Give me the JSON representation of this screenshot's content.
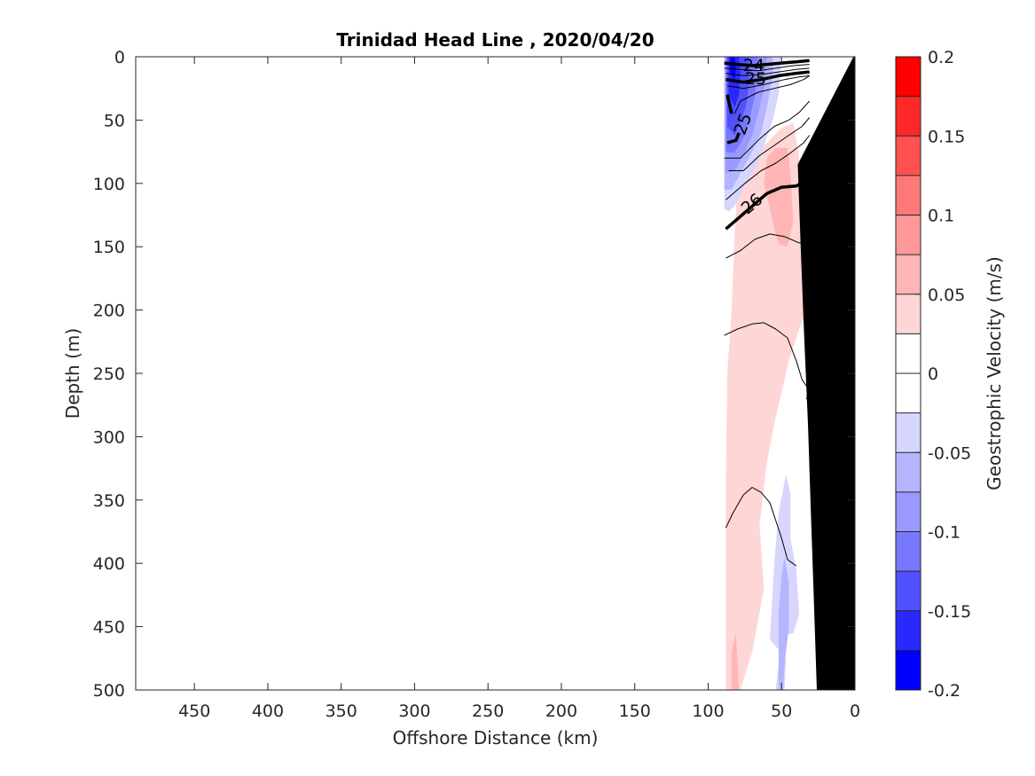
{
  "chart_data": {
    "type": "heatmap",
    "title": "Trinidad Head Line , 2020/04/20",
    "xlabel": "Offshore Distance (km)",
    "ylabel": "Depth (m)",
    "xlim": [
      490,
      0
    ],
    "ylim": [
      0,
      500
    ],
    "x_ticks": [
      "450",
      "400",
      "350",
      "300",
      "250",
      "200",
      "150",
      "100",
      "50",
      "0"
    ],
    "y_ticks": [
      "0",
      "50",
      "100",
      "150",
      "200",
      "250",
      "300",
      "350",
      "400",
      "450",
      "500"
    ],
    "colorbar": {
      "label": "Geostrophic Velocity (m/s)",
      "range": [
        -0.2,
        0.2
      ],
      "tick_labels": [
        "0.2",
        "0.15",
        "0.1",
        "0.05",
        "0",
        "-0.05",
        "-0.1",
        "-0.15",
        "-0.2"
      ],
      "levels": [
        {
          "min": -0.2,
          "max": -0.175,
          "color": "#0000ff"
        },
        {
          "min": -0.175,
          "max": -0.15,
          "color": "#2828ff"
        },
        {
          "min": -0.15,
          "max": -0.125,
          "color": "#5050ff"
        },
        {
          "min": -0.125,
          "max": -0.1,
          "color": "#7878ff"
        },
        {
          "min": -0.1,
          "max": -0.075,
          "color": "#9999ff"
        },
        {
          "min": -0.075,
          "max": -0.05,
          "color": "#b5b5ff"
        },
        {
          "min": -0.05,
          "max": -0.025,
          "color": "#d6d6ff"
        },
        {
          "min": -0.025,
          "max": 0,
          "color": "#ffffff"
        },
        {
          "min": 0,
          "max": 0.025,
          "color": "#ffffff"
        },
        {
          "min": 0.025,
          "max": 0.05,
          "color": "#ffd6d6"
        },
        {
          "min": 0.05,
          "max": 0.075,
          "color": "#ffb5b5"
        },
        {
          "min": 0.075,
          "max": 0.1,
          "color": "#ff9999"
        },
        {
          "min": 0.1,
          "max": 0.125,
          "color": "#ff7878"
        },
        {
          "min": 0.125,
          "max": 0.15,
          "color": "#ff5050"
        },
        {
          "min": 0.15,
          "max": 0.175,
          "color": "#ff2828"
        },
        {
          "min": 0.175,
          "max": 0.2,
          "color": "#ff0000"
        }
      ]
    },
    "velocity_regions": [
      {
        "value": 0.035,
        "color": "#ffd6d6",
        "points": [
          [
            88,
            500
          ],
          [
            88,
            340
          ],
          [
            87,
            250
          ],
          [
            84,
            200
          ],
          [
            82,
            140
          ],
          [
            80,
            100
          ],
          [
            72,
            82
          ],
          [
            60,
            68
          ],
          [
            50,
            56
          ],
          [
            42,
            52
          ],
          [
            38,
            80
          ],
          [
            36,
            130
          ],
          [
            33,
            160
          ],
          [
            32,
            200
          ],
          [
            38,
            215
          ],
          [
            45,
            240
          ],
          [
            55,
            290
          ],
          [
            60,
            320
          ],
          [
            65,
            370
          ],
          [
            62,
            420
          ],
          [
            70,
            470
          ],
          [
            78,
            500
          ]
        ]
      },
      {
        "value": 0.06,
        "color": "#ffb5b5",
        "points": [
          [
            62,
            100
          ],
          [
            60,
            80
          ],
          [
            54,
            72
          ],
          [
            46,
            72
          ],
          [
            44,
            92
          ],
          [
            42,
            130
          ],
          [
            46,
            150
          ],
          [
            52,
            148
          ],
          [
            56,
            130
          ]
        ]
      },
      {
        "value": 0.06,
        "color": "#ffb5b5",
        "points": [
          [
            84,
            500
          ],
          [
            84,
            470
          ],
          [
            81,
            455
          ],
          [
            79,
            500
          ]
        ]
      },
      {
        "value": -0.035,
        "color": "#d6d6ff",
        "points": [
          [
            58,
            460
          ],
          [
            55,
            400
          ],
          [
            52,
            360
          ],
          [
            47,
            330
          ],
          [
            44,
            345
          ],
          [
            44,
            380
          ],
          [
            40,
            405
          ],
          [
            38,
            440
          ],
          [
            42,
            455
          ],
          [
            50,
            458
          ],
          [
            54,
            500
          ],
          [
            48,
            500
          ],
          [
            47,
            475
          ]
        ]
      },
      {
        "value": -0.06,
        "color": "#b5b5ff",
        "points": [
          [
            52,
            500
          ],
          [
            52,
            440
          ],
          [
            50,
            410
          ],
          [
            48,
            395
          ],
          [
            45,
            415
          ],
          [
            45,
            450
          ],
          [
            48,
            480
          ],
          [
            49,
            500
          ]
        ]
      },
      {
        "value": -0.04,
        "color": "#d6d6ff",
        "points": [
          [
            89,
            0
          ],
          [
            89,
            120
          ],
          [
            86,
            122
          ],
          [
            82,
            118
          ],
          [
            74,
            100
          ],
          [
            68,
            88
          ],
          [
            62,
            70
          ],
          [
            56,
            50
          ],
          [
            52,
            30
          ],
          [
            50,
            0
          ]
        ]
      },
      {
        "value": -0.06,
        "color": "#b5b5ff",
        "points": [
          [
            89,
            0
          ],
          [
            89,
            105
          ],
          [
            84,
            105
          ],
          [
            78,
            92
          ],
          [
            70,
            75
          ],
          [
            64,
            60
          ],
          [
            60,
            40
          ],
          [
            56,
            15
          ],
          [
            56,
            0
          ]
        ]
      },
      {
        "value": -0.085,
        "color": "#9999ff",
        "points": [
          [
            88,
            0
          ],
          [
            88,
            92
          ],
          [
            82,
            90
          ],
          [
            76,
            78
          ],
          [
            70,
            62
          ],
          [
            66,
            45
          ],
          [
            62,
            25
          ],
          [
            60,
            0
          ]
        ]
      },
      {
        "value": -0.11,
        "color": "#7878ff",
        "points": [
          [
            88,
            0
          ],
          [
            88,
            75
          ],
          [
            82,
            76
          ],
          [
            76,
            64
          ],
          [
            72,
            50
          ],
          [
            68,
            30
          ],
          [
            66,
            0
          ]
        ]
      },
      {
        "value": -0.135,
        "color": "#5050ff",
        "points": [
          [
            87,
            0
          ],
          [
            87,
            55
          ],
          [
            82,
            62
          ],
          [
            78,
            52
          ],
          [
            74,
            38
          ],
          [
            72,
            20
          ],
          [
            72,
            0
          ]
        ]
      },
      {
        "value": -0.16,
        "color": "#2828ff",
        "points": [
          [
            86,
            0
          ],
          [
            86,
            30
          ],
          [
            82,
            40
          ],
          [
            79,
            30
          ],
          [
            78,
            12
          ],
          [
            79,
            0
          ]
        ]
      },
      {
        "value": -0.185,
        "color": "#0000ff",
        "points": [
          [
            85,
            0
          ],
          [
            85,
            12
          ],
          [
            82,
            18
          ],
          [
            81,
            8
          ],
          [
            82,
            0
          ]
        ]
      }
    ],
    "bathymetry": {
      "color": "#000000",
      "points": [
        [
          0,
          0
        ],
        [
          0,
          500
        ],
        [
          26,
          500
        ],
        [
          28,
          430
        ],
        [
          30,
          360
        ],
        [
          32,
          290
        ],
        [
          35,
          210
        ],
        [
          37,
          150
        ],
        [
          39,
          85
        ],
        [
          1,
          0
        ]
      ]
    },
    "density_contours": [
      {
        "label": "24",
        "bold": true,
        "points": [
          [
            89,
            5
          ],
          [
            80,
            6
          ],
          [
            70,
            7
          ],
          [
            60,
            6
          ],
          [
            50,
            5
          ],
          [
            40,
            4
          ],
          [
            31,
            3
          ]
        ]
      },
      {
        "bold": false,
        "points": [
          [
            89,
            9
          ],
          [
            78,
            10
          ],
          [
            66,
            11
          ],
          [
            54,
            9
          ],
          [
            42,
            7
          ],
          [
            31,
            6
          ]
        ]
      },
      {
        "bold": false,
        "points": [
          [
            88,
            13
          ],
          [
            76,
            15
          ],
          [
            64,
            14
          ],
          [
            52,
            12
          ],
          [
            40,
            10
          ],
          [
            31,
            9
          ]
        ]
      },
      {
        "label": "25",
        "bold": true,
        "points": [
          [
            88,
            18
          ],
          [
            76,
            20
          ],
          [
            64,
            18
          ],
          [
            52,
            15
          ],
          [
            40,
            13
          ],
          [
            31,
            12
          ]
        ]
      },
      {
        "bold": false,
        "points": [
          [
            87,
            23
          ],
          [
            76,
            25
          ],
          [
            62,
            22
          ],
          [
            48,
            18
          ],
          [
            38,
            16
          ],
          [
            31,
            15
          ]
        ]
      },
      {
        "bold": false,
        "points": [
          [
            82,
            45
          ],
          [
            78,
            35
          ],
          [
            66,
            28
          ],
          [
            55,
            25
          ],
          [
            44,
            22
          ],
          [
            35,
            18
          ],
          [
            31,
            15
          ]
        ]
      },
      {
        "bold": true,
        "points": [
          [
            87,
            30
          ],
          [
            84,
            45
          ]
        ]
      },
      {
        "bold": true,
        "points": [
          [
            87,
            68
          ],
          [
            81,
            66
          ],
          [
            79,
            60
          ]
        ]
      },
      {
        "bold": false,
        "points": [
          [
            89,
            80
          ],
          [
            78,
            80
          ],
          [
            65,
            65
          ],
          [
            55,
            55
          ],
          [
            45,
            50
          ],
          [
            38,
            44
          ],
          [
            31,
            35
          ]
        ]
      },
      {
        "bold": false,
        "points": [
          [
            86,
            90
          ],
          [
            76,
            90
          ],
          [
            65,
            78
          ],
          [
            55,
            70
          ],
          [
            45,
            62
          ],
          [
            36,
            55
          ],
          [
            31,
            48
          ]
        ]
      },
      {
        "bold": false,
        "points": [
          [
            88,
            113
          ],
          [
            75,
            100
          ],
          [
            64,
            90
          ],
          [
            54,
            84
          ],
          [
            44,
            76
          ],
          [
            35,
            68
          ],
          [
            31,
            62
          ]
        ]
      },
      {
        "label": "26",
        "bold": true,
        "points": [
          [
            88,
            136
          ],
          [
            80,
            128
          ],
          [
            70,
            118
          ],
          [
            60,
            108
          ],
          [
            50,
            103
          ],
          [
            40,
            102
          ],
          [
            30,
            96
          ]
        ]
      },
      {
        "bold": false,
        "points": [
          [
            88,
            159
          ],
          [
            78,
            153
          ],
          [
            68,
            144
          ],
          [
            58,
            140
          ],
          [
            48,
            142
          ],
          [
            38,
            147
          ],
          [
            31,
            146
          ]
        ]
      },
      {
        "bold": false,
        "points": [
          [
            89,
            220
          ],
          [
            80,
            215
          ],
          [
            70,
            211
          ],
          [
            62,
            210
          ],
          [
            54,
            215
          ],
          [
            46,
            222
          ],
          [
            40,
            240
          ],
          [
            36,
            255
          ],
          [
            33,
            260
          ],
          [
            30,
            265
          ]
        ]
      },
      {
        "bold": false,
        "points": [
          [
            31,
            262
          ],
          [
            33,
            270
          ],
          [
            30,
            272
          ]
        ]
      },
      {
        "bold": false,
        "points": [
          [
            88,
            372
          ],
          [
            83,
            360
          ],
          [
            76,
            346
          ],
          [
            70,
            340
          ],
          [
            64,
            344
          ],
          [
            58,
            352
          ],
          [
            54,
            366
          ],
          [
            50,
            380
          ],
          [
            46,
            397
          ],
          [
            40,
            402
          ]
        ]
      }
    ]
  }
}
